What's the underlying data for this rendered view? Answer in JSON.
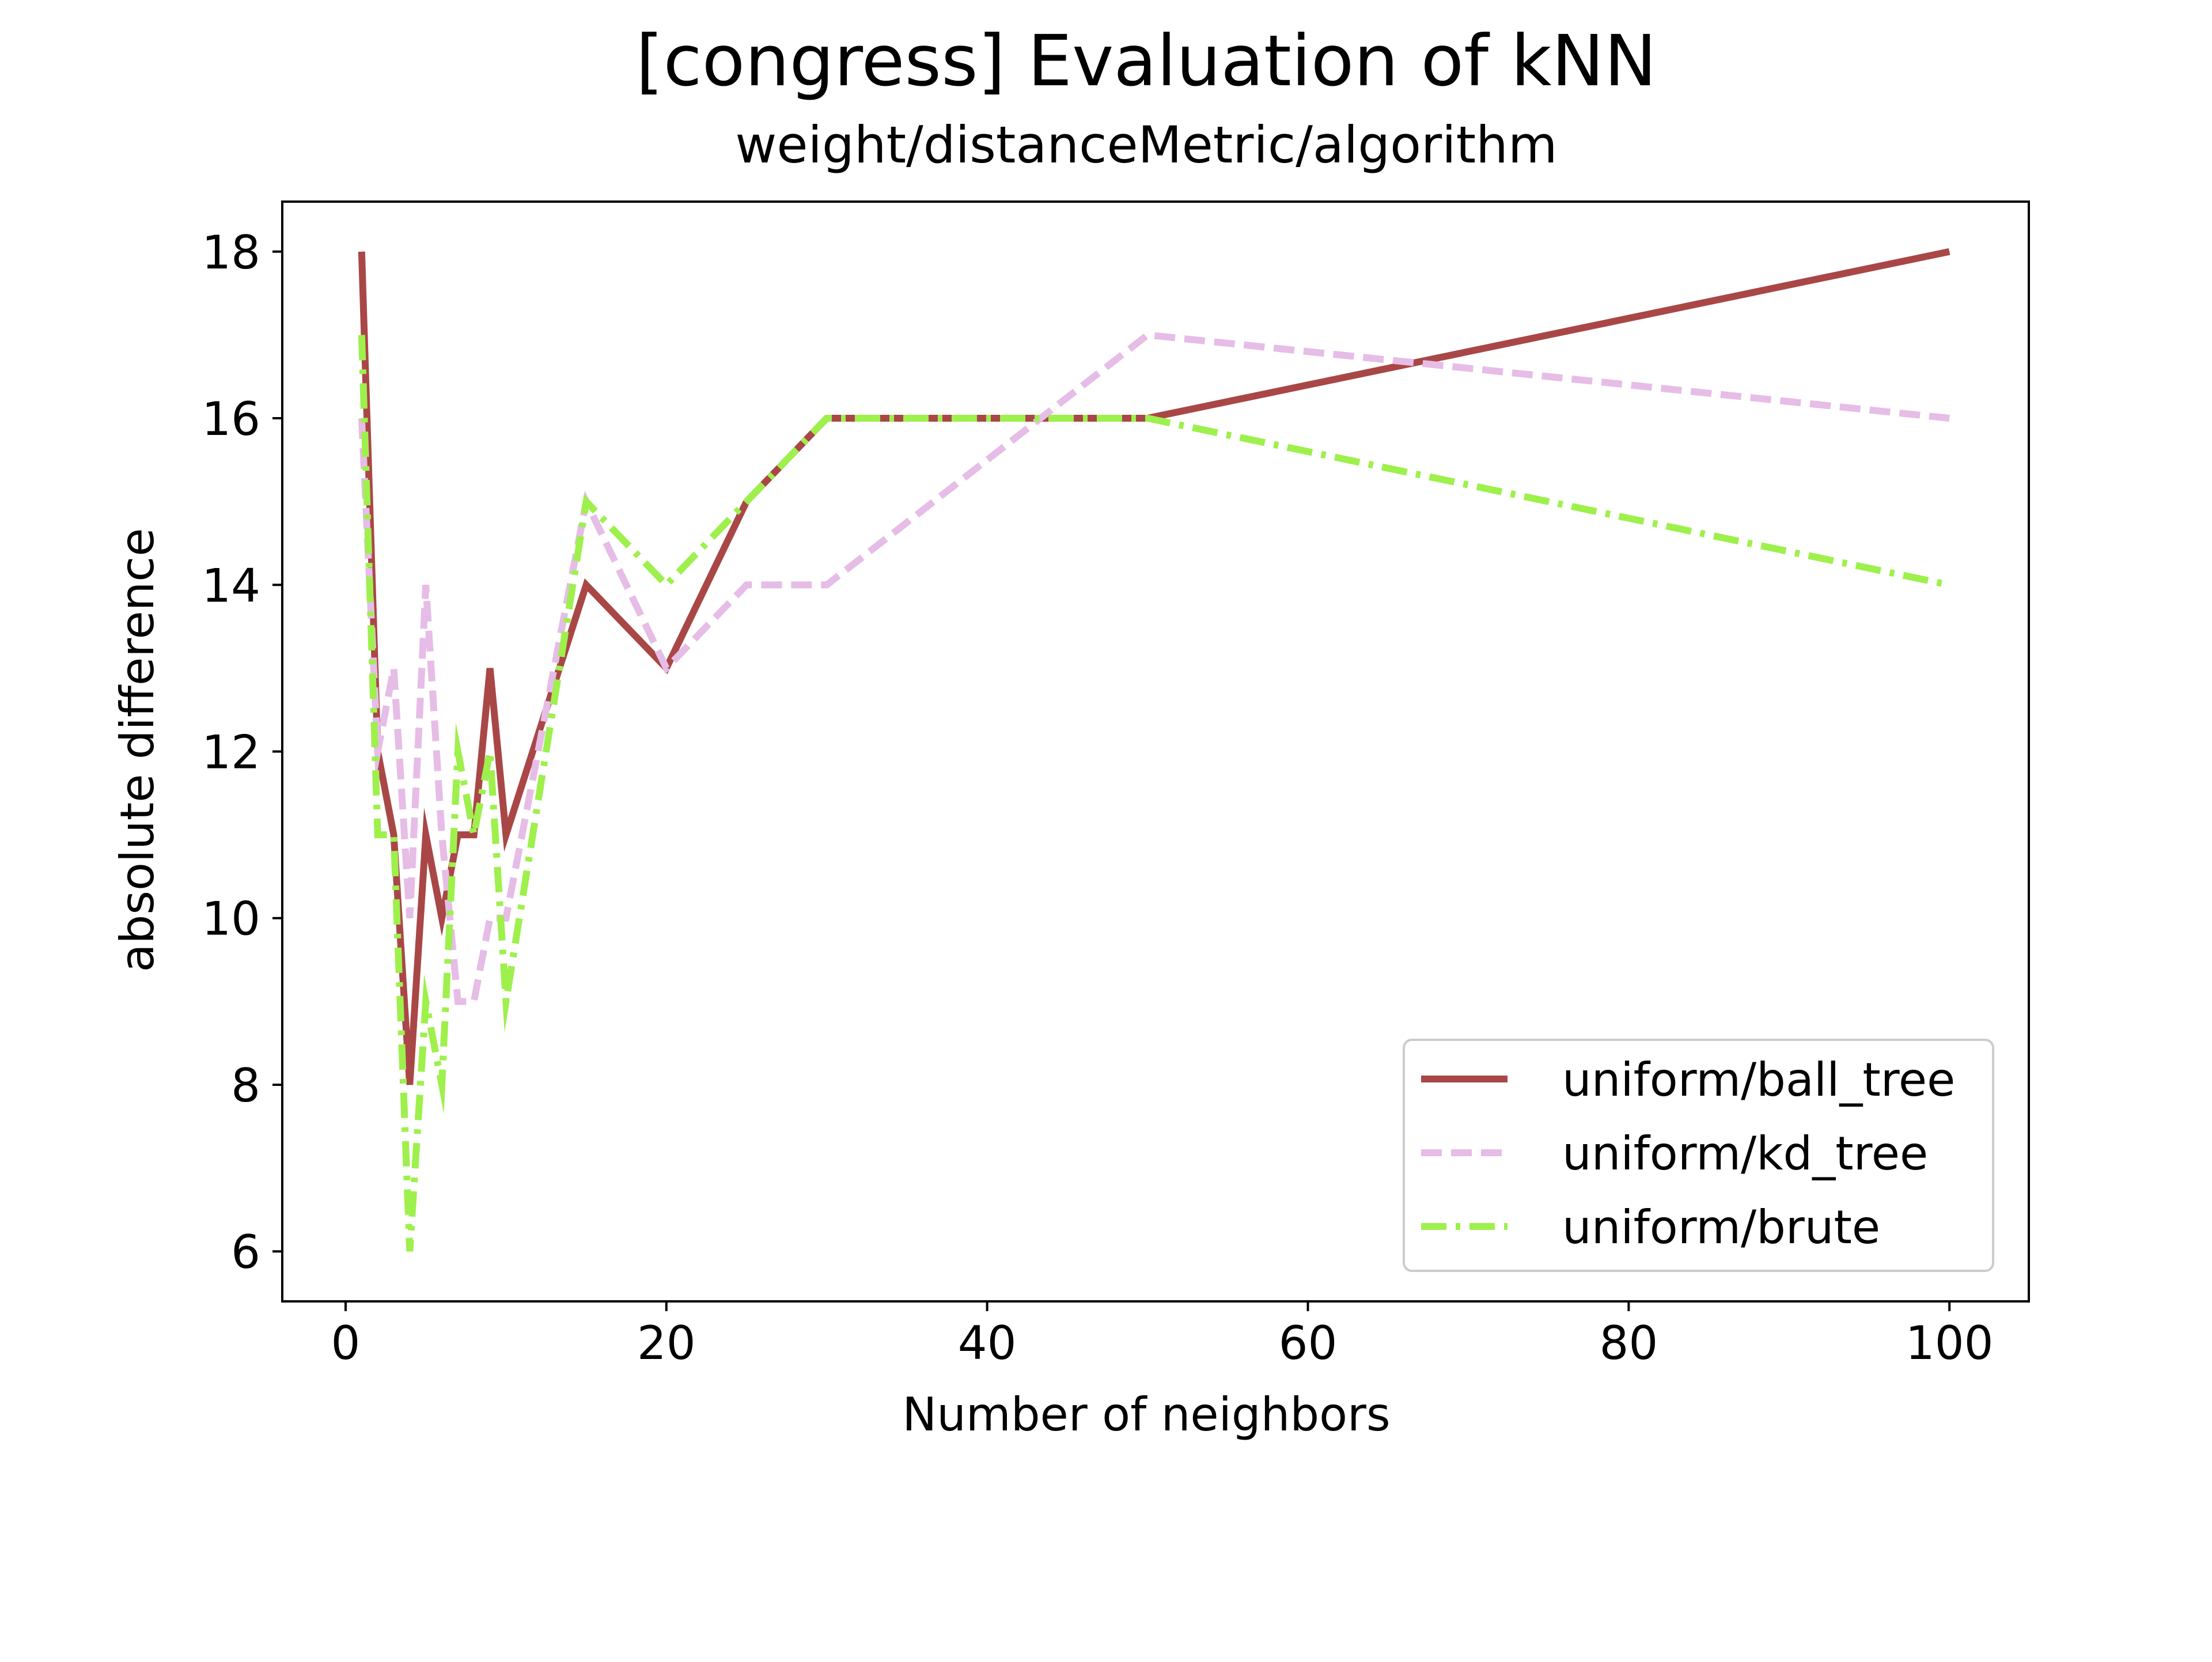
{
  "chart_data": {
    "type": "line",
    "title": "[congress] Evaluation of kNN",
    "subtitle": "weight/distanceMetric/algorithm",
    "xlabel": "Number of neighbors",
    "ylabel": "absolute difference",
    "xlim": [
      -3.95,
      104.95
    ],
    "ylim": [
      5.4,
      18.6
    ],
    "xticks": [
      0,
      20,
      40,
      60,
      80,
      100
    ],
    "yticks": [
      6,
      8,
      10,
      12,
      14,
      16,
      18
    ],
    "grid": false,
    "legend_position": "lower-right",
    "x": [
      1,
      2,
      3,
      4,
      5,
      6,
      7,
      8,
      9,
      10,
      15,
      20,
      25,
      30,
      50,
      100
    ],
    "series": [
      {
        "name": "uniform/ball_tree",
        "color": "#a94747",
        "line_style": "solid",
        "values": [
          18,
          12,
          11,
          8,
          11,
          10,
          11,
          11,
          13,
          11,
          14,
          13,
          15,
          16,
          16,
          18
        ]
      },
      {
        "name": "uniform/kd_tree",
        "color": "#e6bde6",
        "line_style": "dashed",
        "values": [
          16,
          12,
          13,
          10,
          14,
          11,
          9,
          9,
          10,
          10,
          15,
          13,
          14,
          14,
          17,
          16
        ]
      },
      {
        "name": "uniform/brute",
        "color": "#9ef04d",
        "line_style": "dashdot",
        "values": [
          17,
          11,
          11,
          6,
          9,
          8,
          12,
          11,
          12,
          9,
          15,
          14,
          15,
          16,
          16,
          14
        ]
      }
    ]
  }
}
